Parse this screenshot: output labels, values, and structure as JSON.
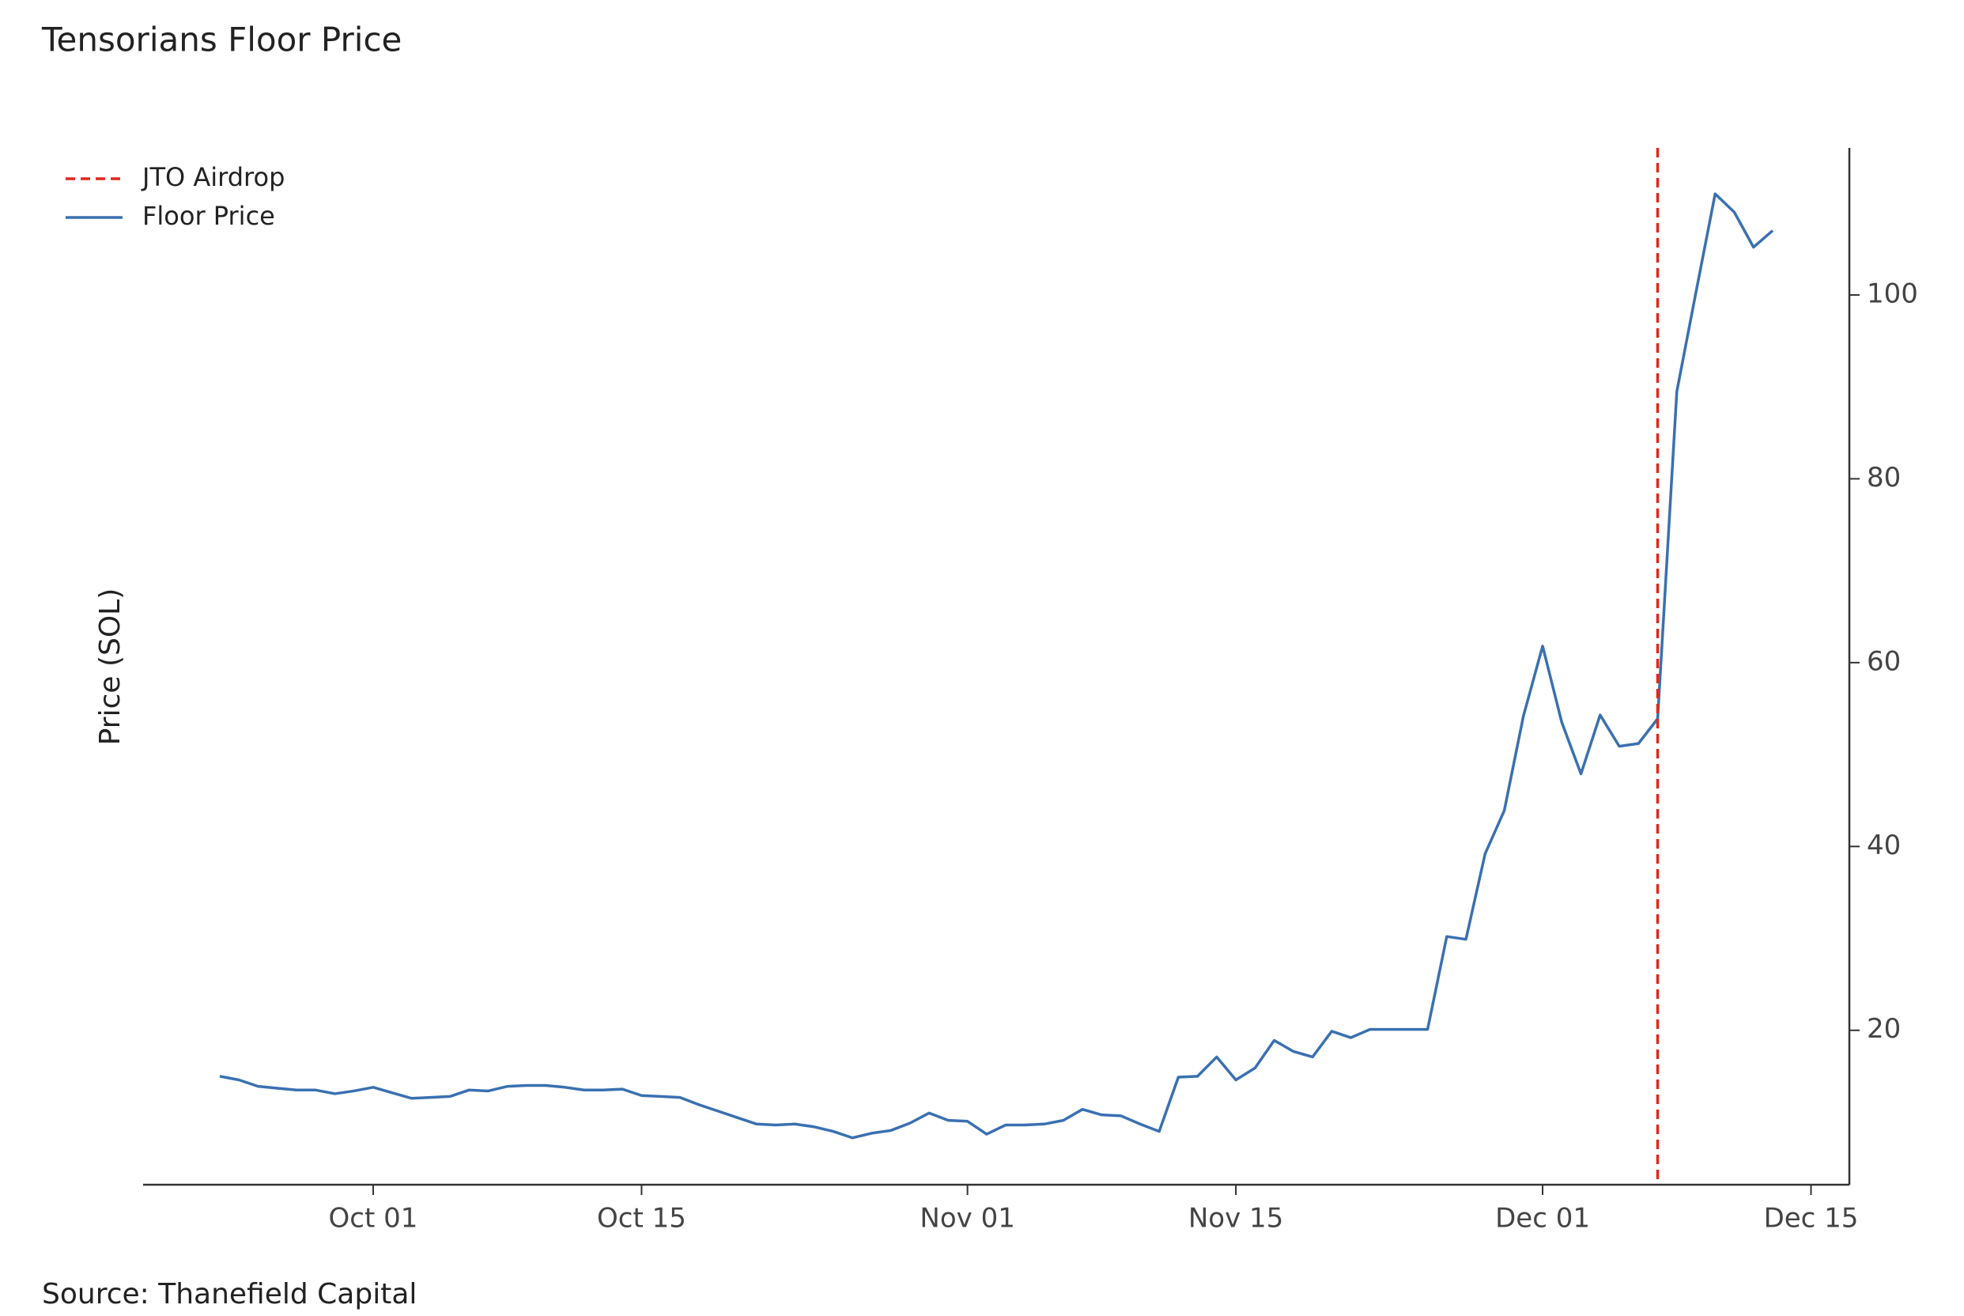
{
  "chart_data": {
    "type": "line",
    "title": "Tensorians Floor Price",
    "y_label": "Price (SOL)",
    "source": "Source: Thanefield Capital",
    "x": [
      "Sep 23",
      "Sep 24",
      "Sep 25",
      "Sep 26",
      "Sep 27",
      "Sep 28",
      "Sep 29",
      "Sep 30",
      "Oct 01",
      "Oct 02",
      "Oct 03",
      "Oct 04",
      "Oct 05",
      "Oct 06",
      "Oct 07",
      "Oct 08",
      "Oct 09",
      "Oct 10",
      "Oct 11",
      "Oct 12",
      "Oct 13",
      "Oct 14",
      "Oct 15",
      "Oct 16",
      "Oct 17",
      "Oct 18",
      "Oct 19",
      "Oct 20",
      "Oct 21",
      "Oct 22",
      "Oct 23",
      "Oct 24",
      "Oct 25",
      "Oct 26",
      "Oct 27",
      "Oct 28",
      "Oct 29",
      "Oct 30",
      "Oct 31",
      "Nov 01",
      "Nov 02",
      "Nov 03",
      "Nov 04",
      "Nov 05",
      "Nov 06",
      "Nov 07",
      "Nov 08",
      "Nov 09",
      "Nov 10",
      "Nov 11",
      "Nov 12",
      "Nov 13",
      "Nov 14",
      "Nov 15",
      "Nov 16",
      "Nov 17",
      "Nov 18",
      "Nov 19",
      "Nov 20",
      "Nov 21",
      "Nov 22",
      "Nov 23",
      "Nov 24",
      "Nov 25",
      "Nov 26",
      "Nov 27",
      "Nov 28",
      "Nov 29",
      "Nov 30",
      "Dec 01",
      "Dec 02",
      "Dec 03",
      "Dec 04",
      "Dec 05",
      "Dec 06",
      "Dec 07",
      "Dec 08",
      "Dec 09",
      "Dec 10",
      "Dec 11",
      "Dec 12",
      "Dec 13"
    ],
    "series": [
      {
        "name": "Floor Price",
        "color": "#3a70b0",
        "values": [
          15.0,
          14.6,
          13.9,
          13.7,
          13.5,
          13.5,
          13.1,
          13.4,
          13.8,
          13.2,
          12.6,
          12.7,
          12.8,
          13.5,
          13.4,
          13.9,
          14.0,
          14.0,
          13.8,
          13.5,
          13.5,
          13.6,
          12.9,
          12.8,
          12.7,
          11.9,
          11.2,
          10.5,
          9.8,
          9.7,
          9.8,
          9.5,
          9.0,
          8.3,
          8.8,
          9.1,
          9.9,
          11.0,
          10.2,
          10.1,
          8.7,
          9.7,
          9.7,
          9.8,
          10.2,
          11.4,
          10.8,
          10.7,
          9.8,
          9.0,
          14.9,
          15.0,
          17.1,
          14.6,
          15.9,
          18.9,
          17.7,
          17.1,
          19.9,
          19.2,
          20.1,
          20.1,
          20.1,
          20.1,
          30.2,
          29.9,
          39.2,
          43.9,
          54.2,
          61.8,
          53.5,
          47.9,
          54.3,
          50.9,
          51.2,
          53.9,
          89.5,
          100.3,
          111.0,
          109.0,
          105.2,
          107.0
        ]
      }
    ],
    "vline": {
      "x": "Dec 07",
      "name": "JTO Airdrop",
      "color": "#e0281e"
    },
    "xlim": [
      "Sep 19",
      "Dec 17"
    ],
    "xticks": [
      "Oct 01",
      "Oct 15",
      "Nov 01",
      "Nov 15",
      "Dec 01",
      "Dec 15"
    ],
    "ylim": [
      3.2,
      116
    ],
    "yticks": [
      20,
      40,
      60,
      80,
      100
    ],
    "y_axis_side": "right",
    "legend": "upper left"
  }
}
